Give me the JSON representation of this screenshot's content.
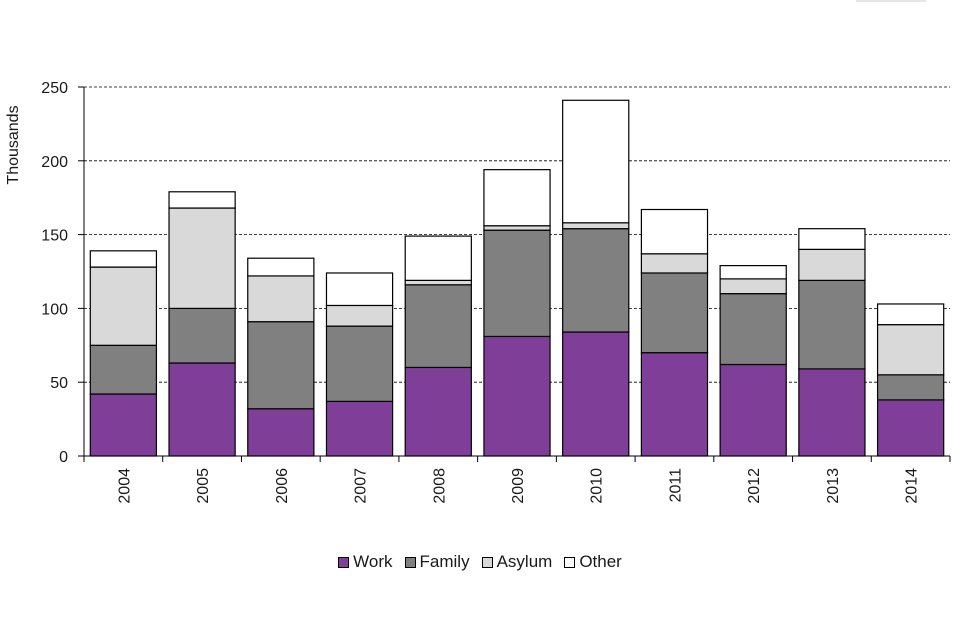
{
  "chart_data": {
    "type": "bar",
    "stacked": true,
    "ylabel": "Thousands",
    "xlabel": "",
    "ylim": [
      0,
      250
    ],
    "yticks": [
      0,
      50,
      100,
      150,
      200,
      250
    ],
    "grid": "horizontal dashed",
    "legend_position": "bottom-center",
    "categories": [
      "2004",
      "2005",
      "2006",
      "2007",
      "2008",
      "2009",
      "2010",
      "2011",
      "2012",
      "2013",
      "2014"
    ],
    "series": [
      {
        "name": "Work",
        "color": "#7f3f98",
        "values": [
          42,
          63,
          32,
          37,
          60,
          81,
          84,
          70,
          62,
          59,
          38
        ]
      },
      {
        "name": "Family",
        "color": "#808080",
        "values": [
          33,
          37,
          59,
          51,
          56,
          72,
          70,
          54,
          48,
          60,
          17
        ]
      },
      {
        "name": "Asylum",
        "color": "#d9d9d9",
        "values": [
          53,
          68,
          31,
          14,
          3,
          3,
          4,
          13,
          10,
          21,
          34
        ]
      },
      {
        "name": "Other",
        "color": "#ffffff",
        "values": [
          11,
          11,
          12,
          22,
          30,
          38,
          83,
          30,
          9,
          14,
          14
        ]
      }
    ]
  }
}
